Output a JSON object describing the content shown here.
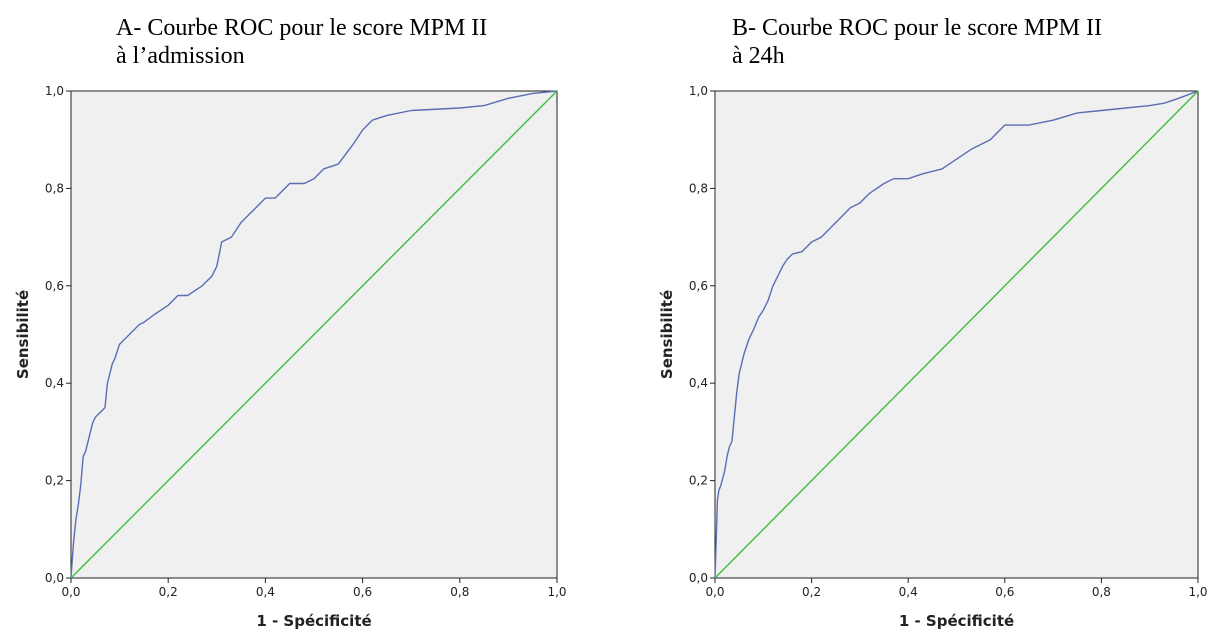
{
  "chart_data": [
    {
      "type": "line",
      "title_lines": [
        "A- Courbe ROC pour le score MPM II",
        "à l’admission"
      ],
      "xlabel": "1 - Spécificité",
      "ylabel": "Sensibilité",
      "xlim": [
        0,
        1
      ],
      "ylim": [
        0,
        1
      ],
      "xticks": [
        "0,0",
        "0,2",
        "0,4",
        "0,6",
        "0,8",
        "1,0"
      ],
      "yticks": [
        "0,0",
        "0,2",
        "0,4",
        "0,6",
        "0,8",
        "1,0"
      ],
      "plot_background": "#f0f0f0",
      "grid": false,
      "series": [
        {
          "color": "#5b6db4",
          "x": [
            0.0,
            0.005,
            0.008,
            0.01,
            0.015,
            0.02,
            0.025,
            0.03,
            0.035,
            0.04,
            0.045,
            0.05,
            0.06,
            0.07,
            0.075,
            0.08,
            0.085,
            0.09,
            0.1,
            0.11,
            0.12,
            0.13,
            0.14,
            0.15,
            0.17,
            0.2,
            0.22,
            0.24,
            0.27,
            0.29,
            0.3,
            0.31,
            0.33,
            0.35,
            0.37,
            0.4,
            0.42,
            0.45,
            0.48,
            0.5,
            0.52,
            0.55,
            0.58,
            0.6,
            0.62,
            0.65,
            0.7,
            0.8,
            0.85,
            0.9,
            0.95,
            1.0
          ],
          "y": [
            0.0,
            0.07,
            0.1,
            0.12,
            0.15,
            0.19,
            0.25,
            0.26,
            0.28,
            0.3,
            0.32,
            0.33,
            0.34,
            0.35,
            0.4,
            0.42,
            0.44,
            0.45,
            0.48,
            0.49,
            0.5,
            0.51,
            0.52,
            0.525,
            0.54,
            0.56,
            0.58,
            0.58,
            0.6,
            0.62,
            0.64,
            0.69,
            0.7,
            0.73,
            0.75,
            0.78,
            0.78,
            0.81,
            0.81,
            0.82,
            0.84,
            0.85,
            0.89,
            0.92,
            0.94,
            0.95,
            0.96,
            0.965,
            0.97,
            0.985,
            0.995,
            1.0
          ]
        },
        {
          "color": "#3dbf3a",
          "x": [
            0,
            1
          ],
          "y": [
            0,
            1
          ]
        }
      ]
    },
    {
      "type": "line",
      "title_lines": [
        "B- Courbe ROC pour le score MPM II",
        "à 24h"
      ],
      "xlabel": "1 - Spécificité",
      "ylabel": "Sensibilité",
      "xlim": [
        0,
        1
      ],
      "ylim": [
        0,
        1
      ],
      "xticks": [
        "0,0",
        "0,2",
        "0,4",
        "0,6",
        "0,8",
        "1,0"
      ],
      "yticks": [
        "0,0",
        "0,2",
        "0,4",
        "0,6",
        "0,8",
        "1,0"
      ],
      "plot_background": "#f0f0f0",
      "grid": false,
      "series": [
        {
          "color": "#5b6db4",
          "x": [
            0.0,
            0.003,
            0.005,
            0.008,
            0.012,
            0.02,
            0.025,
            0.03,
            0.035,
            0.04,
            0.045,
            0.05,
            0.055,
            0.06,
            0.07,
            0.08,
            0.09,
            0.1,
            0.11,
            0.12,
            0.13,
            0.14,
            0.15,
            0.16,
            0.18,
            0.2,
            0.22,
            0.25,
            0.28,
            0.3,
            0.32,
            0.35,
            0.37,
            0.4,
            0.43,
            0.47,
            0.5,
            0.53,
            0.57,
            0.6,
            0.65,
            0.7,
            0.75,
            0.8,
            0.85,
            0.9,
            0.93,
            0.96,
            1.0
          ],
          "y": [
            0.0,
            0.09,
            0.16,
            0.18,
            0.19,
            0.22,
            0.25,
            0.27,
            0.28,
            0.33,
            0.38,
            0.42,
            0.44,
            0.46,
            0.49,
            0.51,
            0.535,
            0.55,
            0.57,
            0.6,
            0.62,
            0.64,
            0.655,
            0.665,
            0.67,
            0.69,
            0.7,
            0.73,
            0.76,
            0.77,
            0.79,
            0.81,
            0.82,
            0.82,
            0.83,
            0.84,
            0.86,
            0.88,
            0.9,
            0.93,
            0.93,
            0.94,
            0.955,
            0.96,
            0.965,
            0.97,
            0.975,
            0.985,
            1.0
          ]
        },
        {
          "color": "#3dbf3a",
          "x": [
            0,
            1
          ],
          "y": [
            0,
            1
          ]
        }
      ]
    }
  ]
}
